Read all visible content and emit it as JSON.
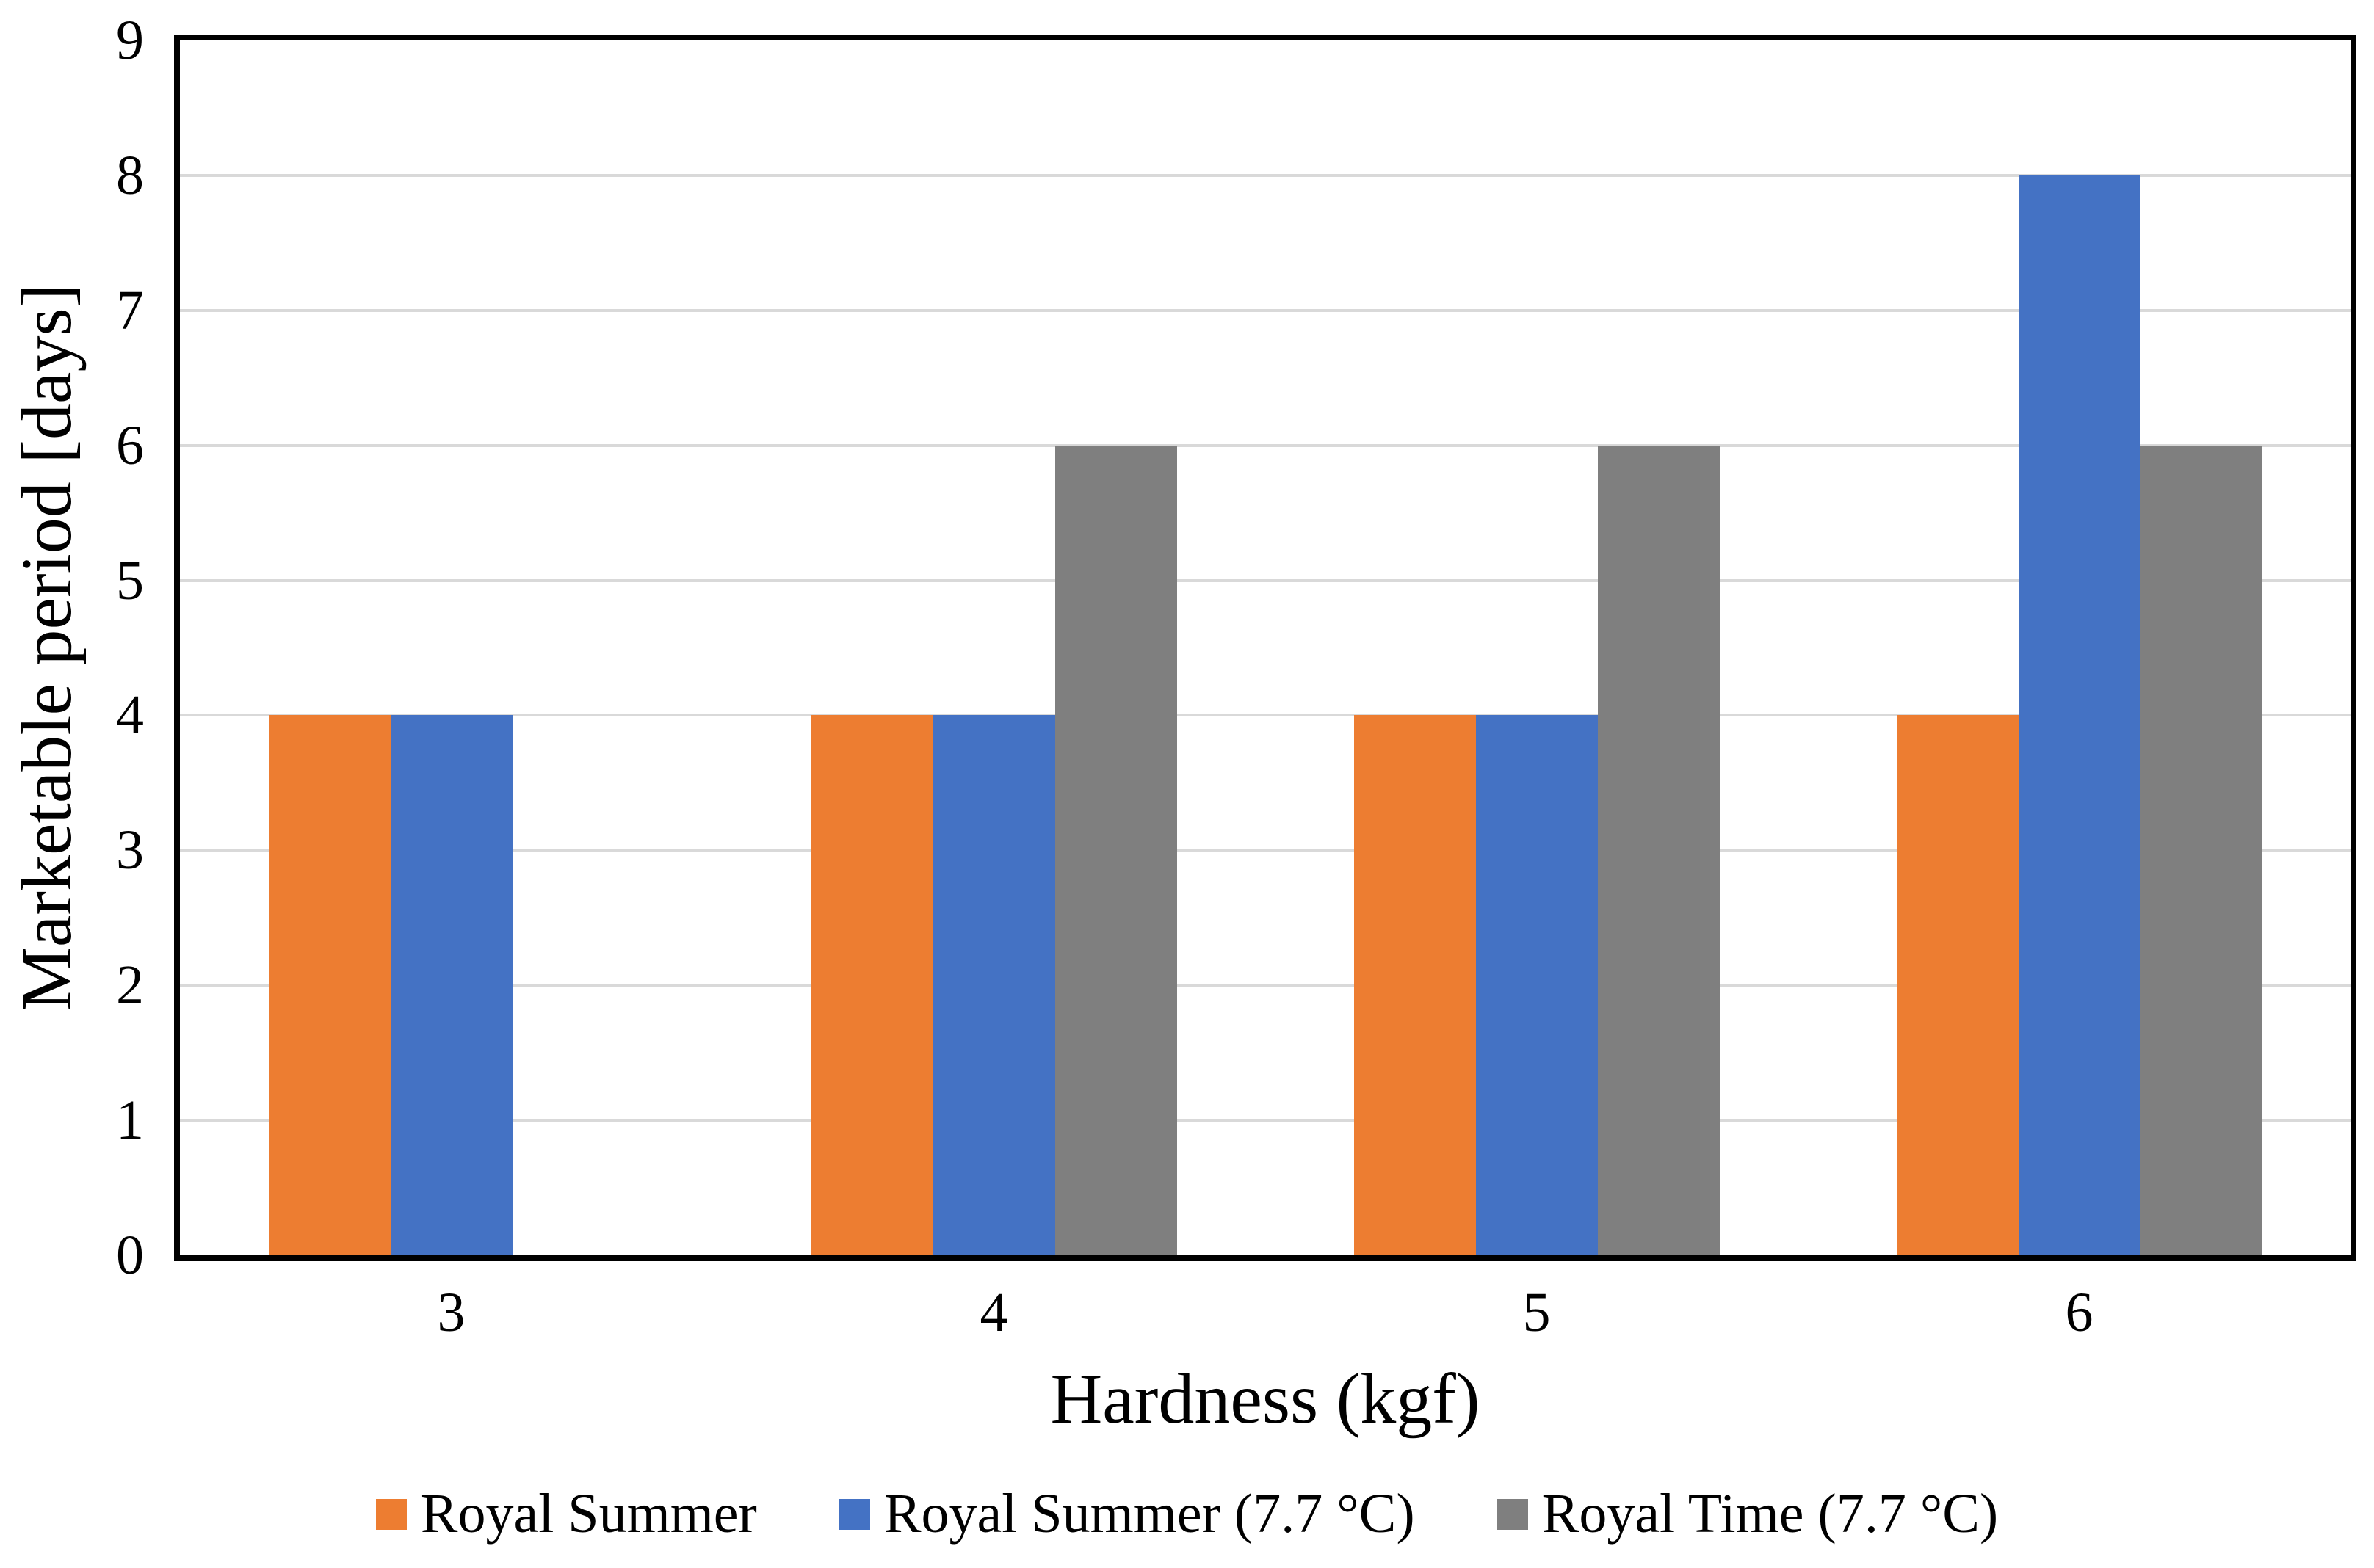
{
  "figure": {
    "background": "#ffffff",
    "axis_line_color": "#000000"
  },
  "chart_data": {
    "type": "bar",
    "title": "",
    "categories": [
      "3",
      "4",
      "5",
      "6"
    ],
    "series": [
      {
        "name": "Royal Summer",
        "color": "#ED7D31",
        "values": [
          4,
          4,
          4,
          4
        ]
      },
      {
        "name": "Royal Summer (7.7 °C)",
        "color": "#4472C4",
        "values": [
          4,
          4,
          4,
          8
        ]
      },
      {
        "name": "Royal Time (7.7 °C)",
        "color": "#7F7F7F",
        "values": [
          0,
          6,
          6,
          6
        ]
      }
    ],
    "xlabel": "Hardness (kgf)",
    "ylabel": "Marketable period [days]",
    "ylim": [
      0,
      9
    ],
    "yticks": [
      0,
      1,
      2,
      3,
      4,
      5,
      6,
      7,
      8,
      9
    ],
    "grid": "horizontal",
    "gridline_color": "#D9D9D9",
    "legend_position": "bottom"
  }
}
